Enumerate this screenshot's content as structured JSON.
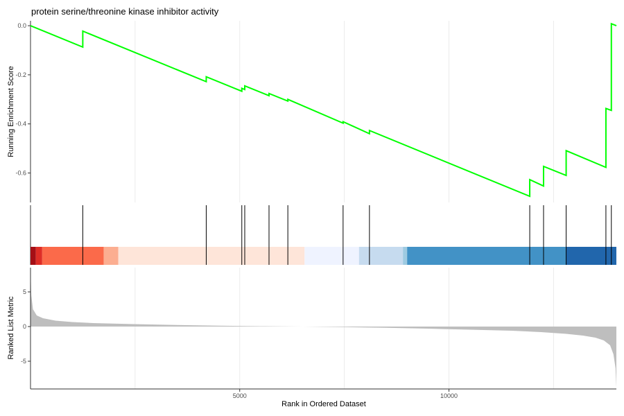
{
  "chart_data": {
    "type": "line",
    "title": "protein serine/threonine kinase inhibitor activity",
    "n_genes": 14000,
    "xlim": [
      1,
      14000
    ],
    "xticks": [
      5000,
      10000
    ],
    "xlabel": "Rank in Ordered Dataset",
    "enrichment": {
      "ylabel": "Running Enrichment Score",
      "ylim": [
        -0.72,
        0.02
      ],
      "yticks": [
        0.0,
        -0.2,
        -0.4,
        -0.6
      ],
      "ytick_labels": [
        "0.0",
        "-0.2",
        "-0.4",
        "-0.6"
      ],
      "line_color": "#00ff00",
      "start": 0.0,
      "end": 0.0,
      "hits": [
        {
          "rank": 1250,
          "before": -0.087,
          "after": -0.022
        },
        {
          "rank": 4200,
          "before": -0.228,
          "after": -0.208
        },
        {
          "rank": 5050,
          "before": -0.267,
          "after": -0.255
        },
        {
          "rank": 5120,
          "before": -0.26,
          "after": -0.245
        },
        {
          "rank": 5700,
          "before": -0.285,
          "after": -0.276
        },
        {
          "rank": 6150,
          "before": -0.307,
          "after": -0.3
        },
        {
          "rank": 7470,
          "before": -0.397,
          "after": -0.391
        },
        {
          "rank": 8100,
          "before": -0.44,
          "after": -0.427
        },
        {
          "rank": 11930,
          "before": -0.695,
          "after": -0.627
        },
        {
          "rank": 12260,
          "before": -0.653,
          "after": -0.573
        },
        {
          "rank": 12800,
          "before": -0.61,
          "after": -0.509
        },
        {
          "rank": 13750,
          "before": -0.577,
          "after": -0.337
        },
        {
          "rank": 13880,
          "before": -0.345,
          "after": 0.008
        }
      ]
    },
    "gene_set_hits": [
      1250,
      4200,
      5050,
      5120,
      5700,
      6150,
      7470,
      8100,
      11930,
      12260,
      12800,
      13750,
      13880
    ],
    "color_bar": [
      {
        "from": 1,
        "to": 130,
        "color": "#a50f15"
      },
      {
        "from": 130,
        "to": 280,
        "color": "#de2d26"
      },
      {
        "from": 280,
        "to": 1750,
        "color": "#fb6a4a"
      },
      {
        "from": 1750,
        "to": 2100,
        "color": "#fcae91"
      },
      {
        "from": 2100,
        "to": 6550,
        "color": "#fee5d9"
      },
      {
        "from": 6550,
        "to": 7850,
        "color": "#eff3ff"
      },
      {
        "from": 7850,
        "to": 8900,
        "color": "#c6dbef"
      },
      {
        "from": 8900,
        "to": 9000,
        "color": "#9ecae1"
      },
      {
        "from": 9000,
        "to": 12800,
        "color": "#4292c6"
      },
      {
        "from": 12800,
        "to": 14000,
        "color": "#2166ac"
      }
    ],
    "ranked_metric": {
      "ylabel": "Ranked List Metric",
      "ylim": [
        -9,
        8.5
      ],
      "yticks": [
        5,
        0,
        -5
      ],
      "ytick_labels": [
        "5",
        "0",
        "-5"
      ],
      "fill_color": "#bebebe",
      "curve": [
        [
          1,
          8.0
        ],
        [
          20,
          4.5
        ],
        [
          60,
          2.5
        ],
        [
          150,
          1.6
        ],
        [
          300,
          1.2
        ],
        [
          600,
          0.85
        ],
        [
          1000,
          0.65
        ],
        [
          1500,
          0.5
        ],
        [
          2500,
          0.35
        ],
        [
          3500,
          0.22
        ],
        [
          4500,
          0.12
        ],
        [
          5500,
          0.05
        ],
        [
          6500,
          0.0
        ],
        [
          7500,
          -0.08
        ],
        [
          8500,
          -0.18
        ],
        [
          9500,
          -0.3
        ],
        [
          10500,
          -0.45
        ],
        [
          11500,
          -0.6
        ],
        [
          12200,
          -0.8
        ],
        [
          12800,
          -1.05
        ],
        [
          13200,
          -1.3
        ],
        [
          13500,
          -1.6
        ],
        [
          13700,
          -2.0
        ],
        [
          13850,
          -2.7
        ],
        [
          13930,
          -4.0
        ],
        [
          13980,
          -6.0
        ],
        [
          14000,
          -8.8
        ]
      ]
    }
  }
}
